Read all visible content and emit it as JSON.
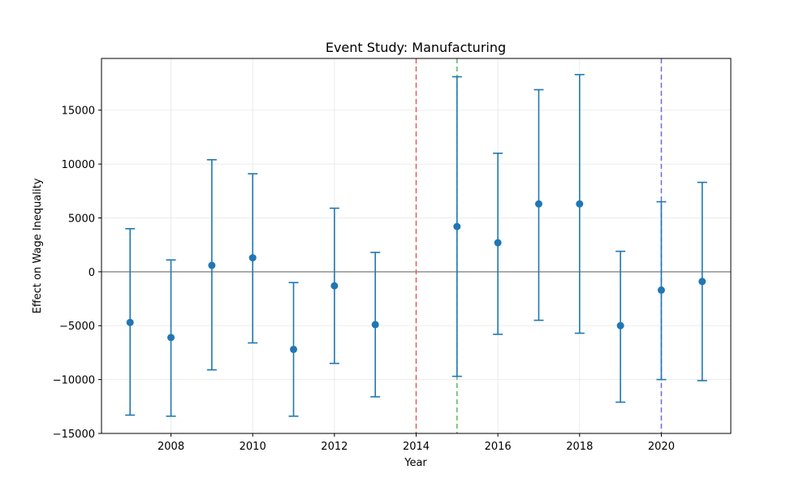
{
  "chart_data": {
    "type": "scatter",
    "title": "Event Study: Manufacturing",
    "xlabel": "Year",
    "ylabel": "Effect on Wage Inequality",
    "xlim": [
      2006.3,
      2021.7
    ],
    "ylim": [
      -15000,
      19800
    ],
    "x_ticks": [
      2008,
      2010,
      2012,
      2014,
      2016,
      2018,
      2020
    ],
    "y_ticks": [
      -15000,
      -10000,
      -5000,
      0,
      5000,
      10000,
      15000
    ],
    "grid": true,
    "series": [
      {
        "color": "#1f77b4",
        "points": [
          {
            "x": 2007,
            "y": -4700,
            "lower": -13300,
            "upper": 4000
          },
          {
            "x": 2008,
            "y": -6100,
            "lower": -13400,
            "upper": 1100
          },
          {
            "x": 2009,
            "y": 600,
            "lower": -9100,
            "upper": 10400
          },
          {
            "x": 2010,
            "y": 1300,
            "lower": -6600,
            "upper": 9100
          },
          {
            "x": 2011,
            "y": -7200,
            "lower": -13400,
            "upper": -1000
          },
          {
            "x": 2012,
            "y": -1300,
            "lower": -8500,
            "upper": 5900
          },
          {
            "x": 2013,
            "y": -4900,
            "lower": -11600,
            "upper": 1800
          },
          {
            "x": 2015,
            "y": 4200,
            "lower": -9700,
            "upper": 18100
          },
          {
            "x": 2016,
            "y": 2700,
            "lower": -5800,
            "upper": 11000
          },
          {
            "x": 2017,
            "y": 6300,
            "lower": -4500,
            "upper": 16900
          },
          {
            "x": 2018,
            "y": 6300,
            "lower": -5700,
            "upper": 18300
          },
          {
            "x": 2019,
            "y": -5000,
            "lower": -12100,
            "upper": 1900
          },
          {
            "x": 2020,
            "y": -1700,
            "lower": -10000,
            "upper": 6500
          },
          {
            "x": 2021,
            "y": -900,
            "lower": -10100,
            "upper": 8300
          }
        ]
      }
    ],
    "reference_lines": {
      "horizontal": [
        {
          "y": 0,
          "color": "#808080"
        }
      ],
      "vertical": [
        {
          "x": 2014,
          "color": "#e8595a"
        },
        {
          "x": 2015,
          "color": "#5cb85c"
        },
        {
          "x": 2020,
          "color": "#6a6ae0"
        }
      ]
    }
  }
}
